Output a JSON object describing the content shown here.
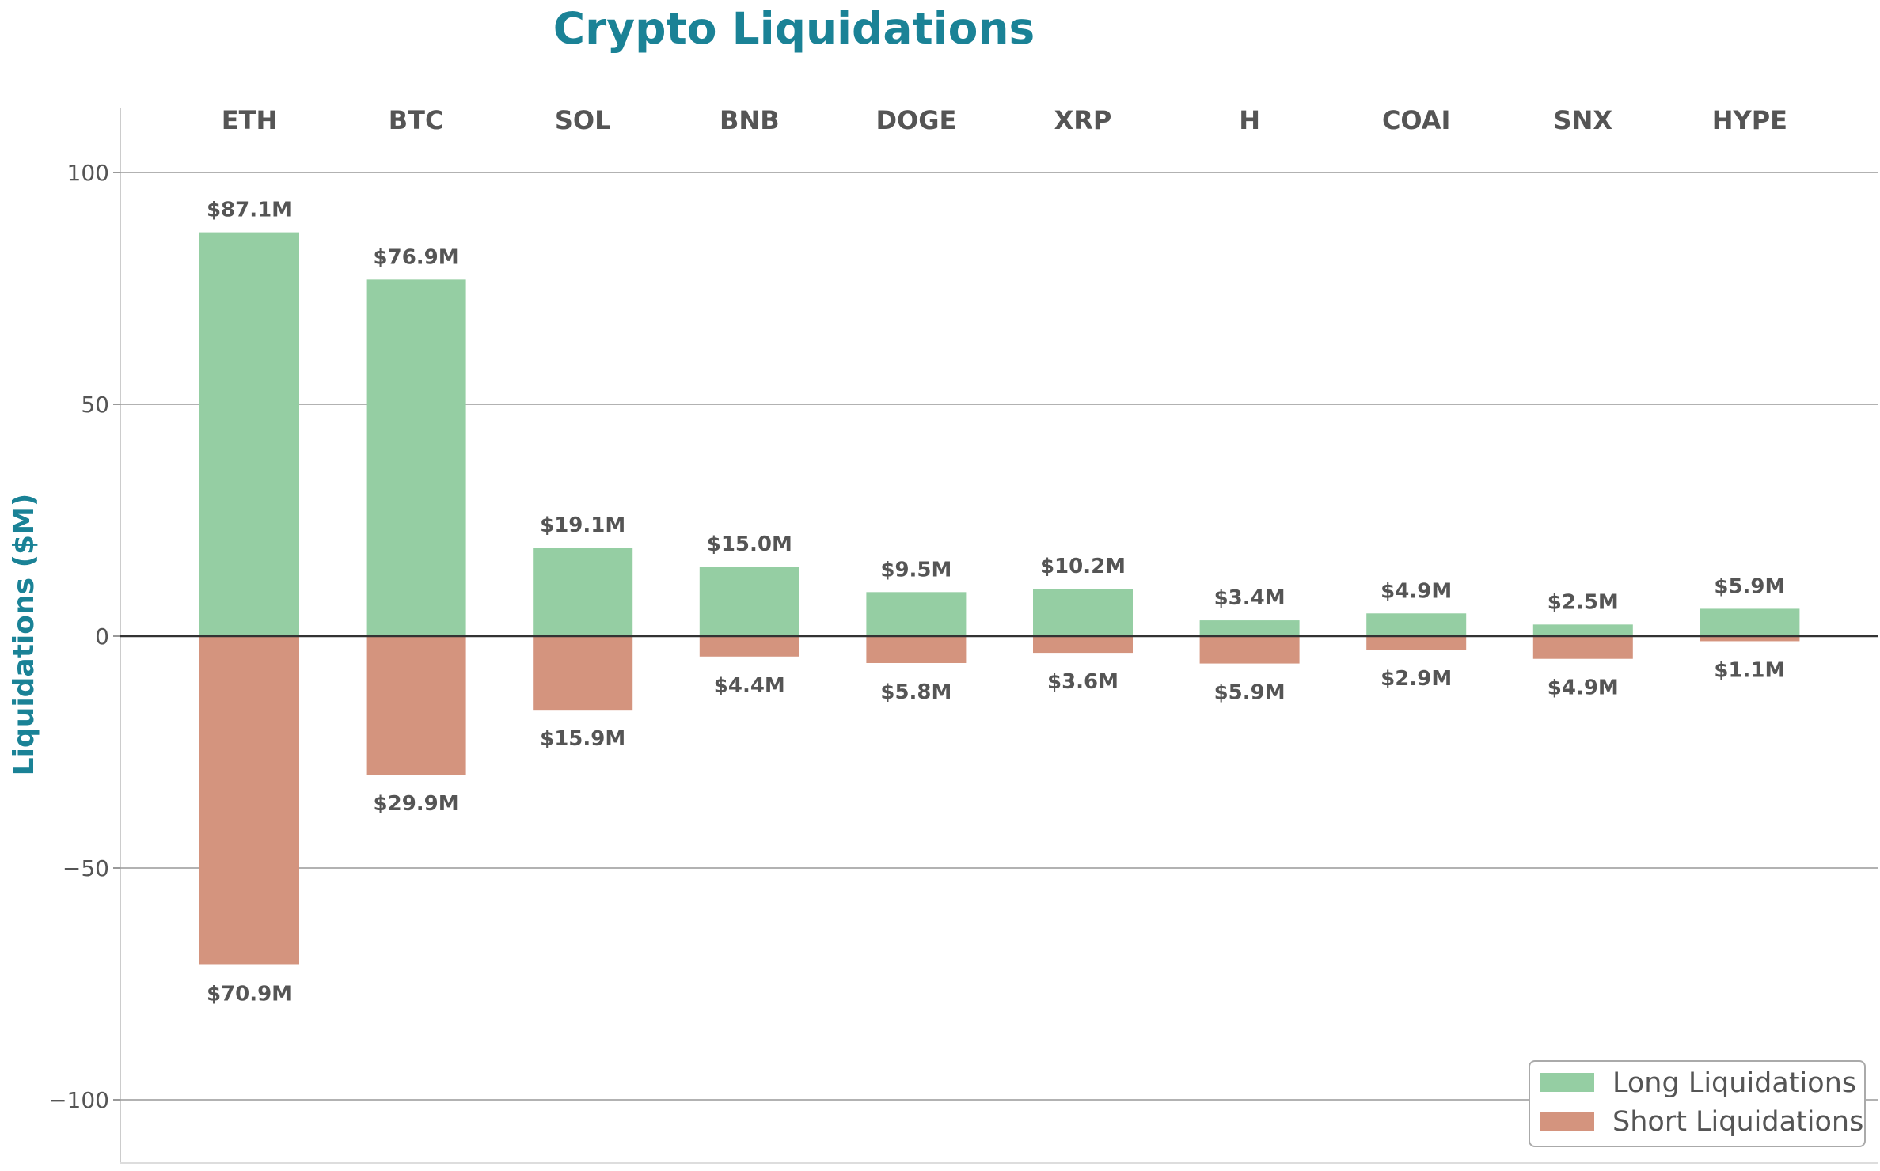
{
  "chart_data": {
    "type": "bar",
    "title": "Crypto Liquidations",
    "ylabel": "Liquidations ($M)",
    "xlabel": "",
    "categories": [
      "ETH",
      "BTC",
      "SOL",
      "BNB",
      "DOGE",
      "XRP",
      "H",
      "COAI",
      "SNX",
      "HYPE"
    ],
    "ylim": [
      -112,
      113
    ],
    "yticks": [
      100,
      50,
      0,
      -50,
      -100
    ],
    "ytick_labels": [
      "100",
      "50",
      "0",
      "−50",
      "−100"
    ],
    "grid": "horizontal",
    "legend_position": "bottom-right",
    "series": [
      {
        "name": "Long Liquidations",
        "color": "#95cea3",
        "values": [
          87.1,
          76.9,
          19.1,
          15.0,
          9.5,
          10.2,
          3.4,
          4.9,
          2.5,
          5.9
        ],
        "labels": [
          "$87.1M",
          "$76.9M",
          "$19.1M",
          "$15.0M",
          "$9.5M",
          "$10.2M",
          "$3.4M",
          "$4.9M",
          "$2.5M",
          "$5.9M"
        ]
      },
      {
        "name": "Short Liquidations",
        "color": "#d4947e",
        "values": [
          -70.9,
          -29.9,
          -15.9,
          -4.4,
          -5.8,
          -3.6,
          -5.9,
          -2.9,
          -4.9,
          -1.1
        ],
        "labels": [
          "$70.9M",
          "$29.9M",
          "$15.9M",
          "$4.4M",
          "$5.8M",
          "$3.6M",
          "$5.9M",
          "$2.9M",
          "$4.9M",
          "$1.1M"
        ]
      }
    ]
  },
  "colors": {
    "title": "#1a8296",
    "text": "#555555",
    "grid": "#999999",
    "zero_line": "#333333",
    "axis": "#cccccc"
  }
}
